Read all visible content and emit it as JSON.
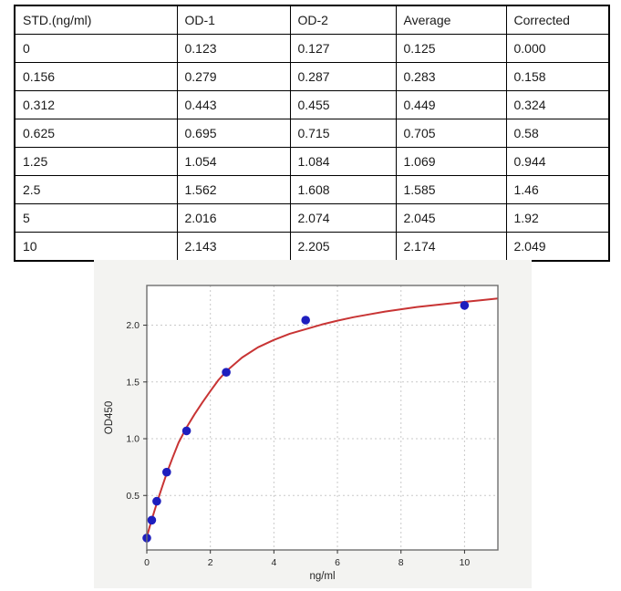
{
  "table": {
    "headers": [
      "STD.(ng/ml)",
      "OD-1",
      "OD-2",
      "Average",
      "Corrected"
    ],
    "rows": [
      [
        "0",
        "0.123",
        "0.127",
        "0.125",
        "0.000"
      ],
      [
        "0.156",
        "0.279",
        "0.287",
        "0.283",
        "0.158"
      ],
      [
        "0.312",
        "0.443",
        "0.455",
        "0.449",
        "0.324"
      ],
      [
        "0.625",
        "0.695",
        "0.715",
        "0.705",
        "0.58"
      ],
      [
        "1.25",
        "1.054",
        "1.084",
        "1.069",
        "0.944"
      ],
      [
        "2.5",
        "1.562",
        "1.608",
        "1.585",
        "1.46"
      ],
      [
        "5",
        "2.016",
        "2.074",
        "2.045",
        "1.92"
      ],
      [
        "10",
        "2.143",
        "2.205",
        "2.174",
        "2.049"
      ]
    ]
  },
  "chart_data": {
    "type": "scatter",
    "title": "",
    "xlabel": "ng/ml",
    "ylabel": "OD450",
    "xlim": [
      0,
      11.05
    ],
    "ylim": [
      0.02,
      2.35
    ],
    "x_ticks": [
      0,
      2,
      4,
      6,
      8,
      10
    ],
    "x_tick_labels": [
      "0",
      "2",
      "4",
      "6",
      "8",
      "10"
    ],
    "y_ticks": [
      0.5,
      1.0,
      1.5,
      2.0
    ],
    "y_tick_labels": [
      "0.5",
      "1.0",
      "1.5",
      "2.0"
    ],
    "grid": "dashed",
    "legend": "none",
    "series": [
      {
        "name": "standard-points",
        "type": "scatter",
        "color": "#1e1ebe",
        "x": [
          0,
          0.156,
          0.312,
          0.625,
          1.25,
          2.5,
          5,
          10
        ],
        "y": [
          0.125,
          0.283,
          0.449,
          0.705,
          1.069,
          1.585,
          2.045,
          2.174
        ]
      },
      {
        "name": "fit-curve",
        "type": "line",
        "color": "#c83434",
        "x": [
          0,
          0.08,
          0.156,
          0.23,
          0.312,
          0.4,
          0.5,
          0.625,
          0.8,
          1.0,
          1.25,
          1.5,
          1.75,
          2.0,
          2.25,
          2.5,
          3.0,
          3.5,
          4.0,
          4.5,
          5.0,
          5.5,
          6.0,
          6.5,
          7.0,
          7.5,
          8.0,
          8.5,
          9.0,
          9.5,
          10.0,
          10.5,
          11.05
        ],
        "y": [
          0.135,
          0.215,
          0.285,
          0.355,
          0.43,
          0.505,
          0.59,
          0.695,
          0.825,
          0.965,
          1.1,
          1.215,
          1.32,
          1.42,
          1.515,
          1.595,
          1.715,
          1.805,
          1.87,
          1.925,
          1.965,
          2.005,
          2.04,
          2.07,
          2.095,
          2.12,
          2.14,
          2.16,
          2.175,
          2.19,
          2.205,
          2.22,
          2.235
        ]
      }
    ],
    "colors": {
      "panel_background": "#f3f3f1",
      "plot_background": "#ffffff",
      "plot_border": "#6e6e6e",
      "gridline": "#c9c9c9",
      "tick_text": "#262626",
      "point": "#1e1ebe",
      "curve": "#c83434"
    }
  }
}
